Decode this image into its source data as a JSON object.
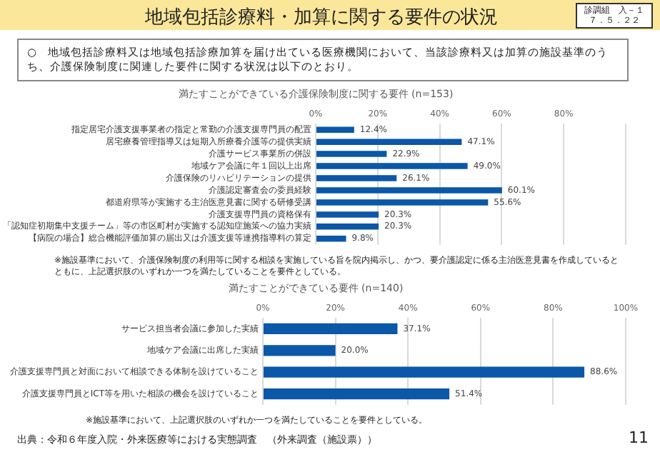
{
  "chart_data": [
    {
      "type": "bar",
      "orientation": "horizontal",
      "title": "満たすことができている介護保険制度に関する要件 (n=153)",
      "categories": [
        "指定居宅介護支援事業者の指定と常勤の介護支援専門員の配置",
        "居宅療養管理指導又は短期入所療養介護等の提供実績",
        "介護サービス事業所の併設",
        "地域ケア会議に年１回以上出席",
        "介護保険のリハビリテーションの提供",
        "介護認定審査会の委員経験",
        "都道府県等が実施する主治医意見書に関する研修受講",
        "介護支援専門員の資格保有",
        "「認知症初期集中支援チーム」等の市区町村が実施する認知症施策への協力実績",
        "【病院の場合】総合機能評価加算の届出又は介護支援等連携指導料の算定"
      ],
      "values": [
        12.4,
        47.1,
        22.9,
        49.0,
        26.1,
        60.1,
        55.6,
        20.3,
        20.3,
        9.8
      ],
      "value_labels": [
        "12.4%",
        "47.1%",
        "22.9%",
        "49.0%",
        "26.1%",
        "60.1%",
        "55.6%",
        "20.3%",
        "20.3%",
        "9.8%"
      ],
      "color": "#0b57a8",
      "xlim": [
        0,
        100
      ],
      "xticks": [
        {
          "value": 0,
          "label": "0%"
        },
        {
          "value": 20,
          "label": "20%"
        },
        {
          "value": 40,
          "label": "40%"
        },
        {
          "value": 60,
          "label": "60%"
        },
        {
          "value": 80,
          "label": "80%"
        },
        {
          "value": 100,
          "label": null
        }
      ],
      "grid": "x",
      "legend": false,
      "annotations": [
        "地域包括診療料・加算に関する要件の状況",
        "診調組　入－１",
        "７．５．２２",
        "○　地域包括診療料又は地域包括診療加算を届け出ている医療機関において、当該診療料又は加算の施設基準のうち、介護保険制度に関連した要件に関する状況は以下のとおり。",
        "※施設基準において、介護保険制度の利用等に関する相談を実施している旨を院内掲示し、かつ、要介護認定に係る主治医意見書を作成しているとともに、上記選択肢のいずれか一つを満たしていることを要件としている。"
      ]
    },
    {
      "type": "bar",
      "orientation": "horizontal",
      "title": "満たすことができている要件 (n=140)",
      "categories": [
        "サービス担当者会議に参加した実績",
        "地域ケア会議に出席した実績",
        "介護支援専門員と対面において相談できる体制を設けていること",
        "介護支援専門員とICT等を用いた相談の機会を設けていること"
      ],
      "values": [
        37.1,
        20.0,
        88.6,
        51.4
      ],
      "value_labels": [
        "37.1%",
        "20.0%",
        "88.6%",
        "51.4%"
      ],
      "color": "#0b57a8",
      "xlim": [
        0,
        100
      ],
      "xticks": [
        {
          "value": 0,
          "label": "0%"
        },
        {
          "value": 20,
          "label": "20%"
        },
        {
          "value": 40,
          "label": "40%"
        },
        {
          "value": 60,
          "label": "60%"
        },
        {
          "value": 80,
          "label": "80%"
        },
        {
          "value": 100,
          "label": "100%"
        }
      ],
      "grid": "x",
      "legend": false,
      "annotations": [
        "※施設基準において、上記選択肢のいずれか一つを満たしていることを要件としている。",
        "出典：令和６年度入院・外来医療等における実態調査　（外来調査（施設票））",
        "11"
      ]
    }
  ]
}
